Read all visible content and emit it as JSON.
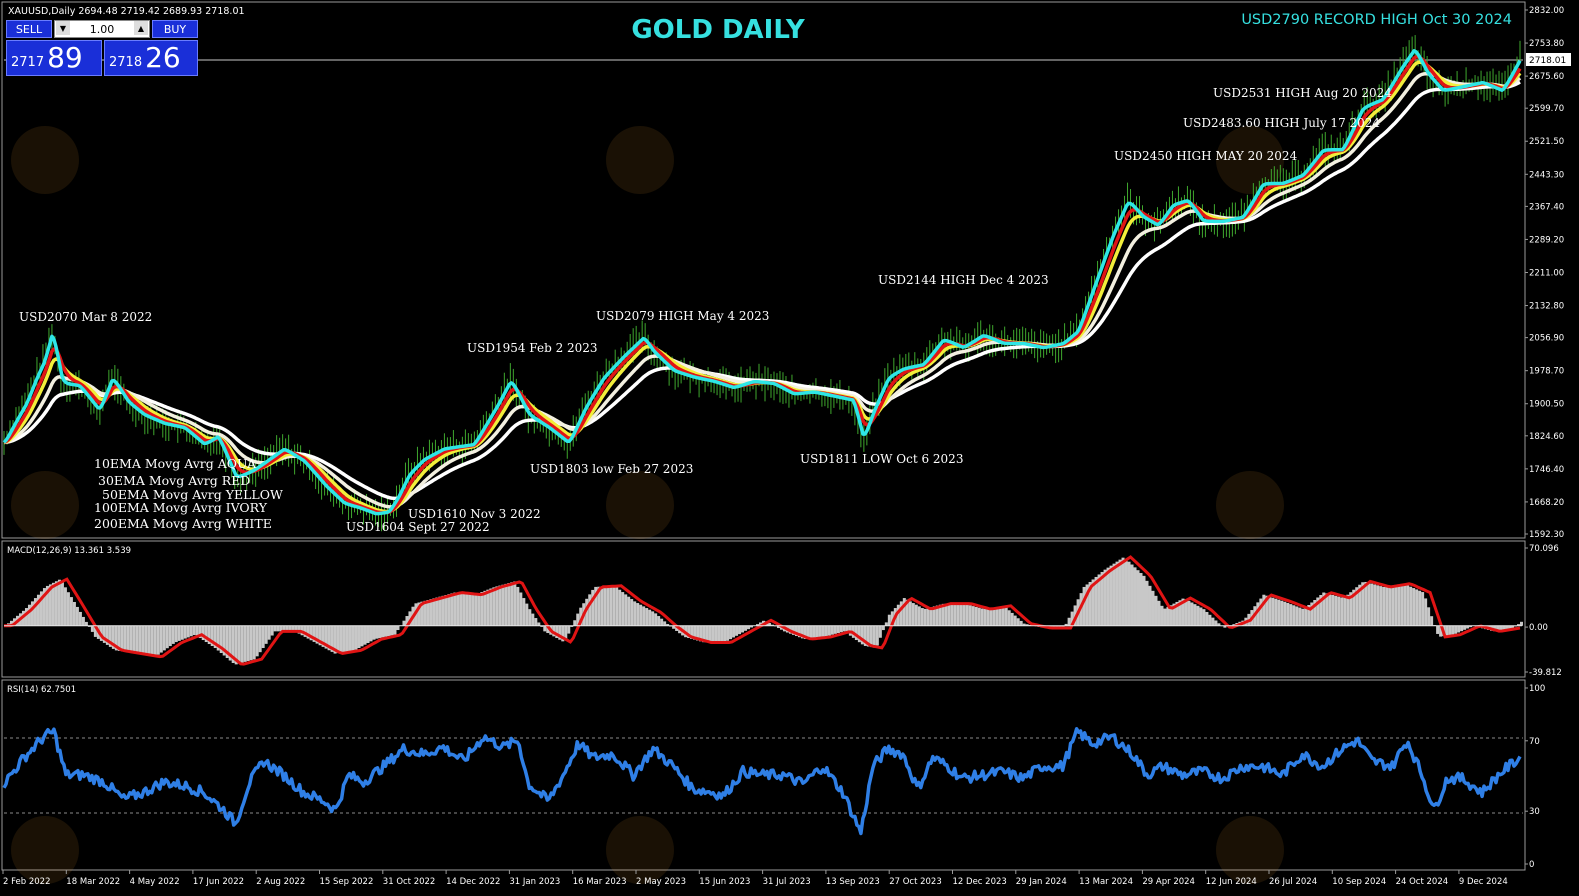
{
  "symbol_info": "XAUUSD,Daily  2694.48 2719.42 2689.93 2718.01",
  "title": "GOLD DAILY",
  "record_text": "USD2790 RECORD HIGH Oct 30 2024",
  "trade_panel": {
    "sell_label": "SELL",
    "buy_label": "BUY",
    "lot": "1.00",
    "sell_prefix": "2717",
    "sell_big": "89",
    "buy_prefix": "2718",
    "buy_big": "26",
    "down_arrow": "▼",
    "up_arrow": "▲"
  },
  "colors": {
    "ema10": "#2ee6e6",
    "ema30": "#e01414",
    "ema50": "#f2ee3a",
    "ema100": "#f3f0e0",
    "ema200": "#ffffff",
    "candles": "#3fa82e",
    "macd_line": "#e01414",
    "macd_hist": "#c8c8c8",
    "rsi": "#2f7fe6",
    "title": "#36e0e0"
  },
  "chart_data": [
    {
      "type": "line",
      "panel": "price",
      "price_label": "2718.01",
      "y_axis_ticks": [
        "2832.00",
        "2753.80",
        "2675.60",
        "2599.70",
        "2521.50",
        "2443.30",
        "2367.40",
        "2289.20",
        "2211.00",
        "2132.80",
        "2056.90",
        "1978.70",
        "1900.50",
        "1824.60",
        "1746.40",
        "1668.20",
        "1592.30"
      ],
      "ylim": [
        1592.3,
        2832.0
      ],
      "x_axis_labels": [
        "2 Feb 2022",
        "18 Mar 2022",
        "4 May 2022",
        "17 Jun 2022",
        "2 Aug 2022",
        "15 Sep 2022",
        "31 Oct 2022",
        "14 Dec 2022",
        "31 Jan 2023",
        "16 Mar 2023",
        "2 May 2023",
        "15 Jun 2023",
        "31 Jul 2023",
        "13 Sep 2023",
        "27 Oct 2023",
        "12 Dec 2023",
        "29 Jan 2024",
        "13 Mar 2024",
        "29 Apr 2024",
        "12 Jun 2024",
        "26 Jul 2024",
        "10 Sep 2024",
        "24 Oct 2024",
        "9 Dec 2024"
      ],
      "price_points": [
        [
          0,
          1805
        ],
        [
          10,
          1850
        ],
        [
          22,
          1900
        ],
        [
          32,
          1960
        ],
        [
          40,
          2000
        ],
        [
          48,
          2070
        ],
        [
          58,
          1945
        ],
        [
          75,
          1940
        ],
        [
          95,
          1880
        ],
        [
          108,
          1960
        ],
        [
          124,
          1900
        ],
        [
          140,
          1870
        ],
        [
          160,
          1850
        ],
        [
          180,
          1840
        ],
        [
          200,
          1800
        ],
        [
          214,
          1820
        ],
        [
          232,
          1720
        ],
        [
          250,
          1740
        ],
        [
          262,
          1760
        ],
        [
          280,
          1790
        ],
        [
          300,
          1760
        ],
        [
          322,
          1700
        ],
        [
          340,
          1660
        ],
        [
          355,
          1650
        ],
        [
          372,
          1635
        ],
        [
          385,
          1640
        ],
        [
          395,
          1680
        ],
        [
          405,
          1730
        ],
        [
          420,
          1765
        ],
        [
          440,
          1790
        ],
        [
          470,
          1800
        ],
        [
          495,
          1900
        ],
        [
          507,
          1954
        ],
        [
          525,
          1870
        ],
        [
          545,
          1840
        ],
        [
          565,
          1803
        ],
        [
          582,
          1890
        ],
        [
          600,
          1960
        ],
        [
          620,
          2010
        ],
        [
          640,
          2055
        ],
        [
          650,
          2020
        ],
        [
          670,
          1975
        ],
        [
          690,
          1960
        ],
        [
          710,
          1950
        ],
        [
          730,
          1935
        ],
        [
          750,
          1950
        ],
        [
          770,
          1945
        ],
        [
          790,
          1920
        ],
        [
          810,
          1925
        ],
        [
          830,
          1915
        ],
        [
          850,
          1905
        ],
        [
          860,
          1811
        ],
        [
          870,
          1880
        ],
        [
          885,
          1960
        ],
        [
          900,
          1980
        ],
        [
          920,
          1990
        ],
        [
          940,
          2050
        ],
        [
          960,
          2030
        ],
        [
          980,
          2060
        ],
        [
          1000,
          2040
        ],
        [
          1020,
          2040
        ],
        [
          1040,
          2030
        ],
        [
          1060,
          2040
        ],
        [
          1075,
          2070
        ],
        [
          1090,
          2170
        ],
        [
          1110,
          2300
        ],
        [
          1125,
          2380
        ],
        [
          1140,
          2340
        ],
        [
          1155,
          2320
        ],
        [
          1170,
          2370
        ],
        [
          1185,
          2380
        ],
        [
          1200,
          2330
        ],
        [
          1220,
          2330
        ],
        [
          1240,
          2340
        ],
        [
          1260,
          2420
        ],
        [
          1280,
          2420
        ],
        [
          1300,
          2440
        ],
        [
          1320,
          2500
        ],
        [
          1340,
          2500
        ],
        [
          1360,
          2600
        ],
        [
          1380,
          2620
        ],
        [
          1400,
          2700
        ],
        [
          1412,
          2740
        ],
        [
          1425,
          2680
        ],
        [
          1440,
          2640
        ],
        [
          1460,
          2650
        ],
        [
          1480,
          2660
        ],
        [
          1500,
          2640
        ],
        [
          1518,
          2718
        ]
      ],
      "series": [
        {
          "name": "10EMA Movg Avrg AQUA",
          "offset_lag": 6
        },
        {
          "name": "30EMA Movg Avrg RED",
          "offset_lag": 16
        },
        {
          "name": "50EMA Movg Avrg YELLOW",
          "offset_lag": 26
        },
        {
          "name": "100EMA Movg Avrg IVORY",
          "offset_lag": 50
        },
        {
          "name": "200EMA Movg Avrg WHITE",
          "offset_lag": 90
        }
      ],
      "legend_entries": [
        "10EMA Movg Avrg AQUA",
        "30EMA Movg Avrg RED",
        "50EMA Movg Avrg YELLOW",
        "100EMA Movg Avrg IVORY",
        "200EMA Movg Avrg WHITE"
      ],
      "annotations": [
        "USD2070 Mar 8 2022",
        "USD1954 Feb 2 2023",
        "USD2079 HIGH May 4 2023",
        "USD2144 HIGH Dec 4 2023",
        "USD2450 HIGH MAY 20 2024",
        "USD2483.60 HIGH July 17 2024",
        "USD2531 HIGH Aug 20 2024",
        "USD1803 low Feb 27 2023",
        "USD1811 LOW Oct 6 2023",
        "USD1610 Nov 3 2022",
        "USD1604 Sept 27 2022"
      ]
    },
    {
      "type": "area",
      "panel": "macd",
      "label": "MACD(12,26,9) 13.361 3.539",
      "y_axis_ticks": [
        "70.096",
        "0.00",
        "-39.812"
      ],
      "ylim": [
        -39.812,
        70.096
      ],
      "values": [
        [
          0,
          0
        ],
        [
          20,
          15
        ],
        [
          40,
          35
        ],
        [
          55,
          42
        ],
        [
          70,
          20
        ],
        [
          90,
          -10
        ],
        [
          110,
          -22
        ],
        [
          130,
          -25
        ],
        [
          150,
          -28
        ],
        [
          170,
          -15
        ],
        [
          190,
          -8
        ],
        [
          210,
          -20
        ],
        [
          230,
          -35
        ],
        [
          250,
          -30
        ],
        [
          270,
          -5
        ],
        [
          290,
          -5
        ],
        [
          310,
          -15
        ],
        [
          330,
          -25
        ],
        [
          350,
          -22
        ],
        [
          370,
          -12
        ],
        [
          390,
          -8
        ],
        [
          410,
          20
        ],
        [
          430,
          25
        ],
        [
          450,
          30
        ],
        [
          470,
          28
        ],
        [
          490,
          35
        ],
        [
          510,
          40
        ],
        [
          525,
          15
        ],
        [
          540,
          -5
        ],
        [
          560,
          -15
        ],
        [
          575,
          15
        ],
        [
          590,
          35
        ],
        [
          610,
          36
        ],
        [
          630,
          22
        ],
        [
          650,
          12
        ],
        [
          665,
          0
        ],
        [
          680,
          -10
        ],
        [
          700,
          -15
        ],
        [
          720,
          -15
        ],
        [
          740,
          -5
        ],
        [
          760,
          5
        ],
        [
          780,
          -5
        ],
        [
          800,
          -12
        ],
        [
          820,
          -10
        ],
        [
          840,
          -5
        ],
        [
          860,
          -18
        ],
        [
          872,
          -20
        ],
        [
          885,
          10
        ],
        [
          900,
          25
        ],
        [
          920,
          15
        ],
        [
          940,
          20
        ],
        [
          960,
          20
        ],
        [
          980,
          15
        ],
        [
          1000,
          18
        ],
        [
          1020,
          2
        ],
        [
          1040,
          -2
        ],
        [
          1060,
          -2
        ],
        [
          1080,
          35
        ],
        [
          1100,
          50
        ],
        [
          1120,
          62
        ],
        [
          1140,
          45
        ],
        [
          1160,
          15
        ],
        [
          1180,
          25
        ],
        [
          1200,
          15
        ],
        [
          1220,
          -2
        ],
        [
          1240,
          5
        ],
        [
          1260,
          28
        ],
        [
          1280,
          22
        ],
        [
          1300,
          15
        ],
        [
          1320,
          30
        ],
        [
          1340,
          25
        ],
        [
          1360,
          40
        ],
        [
          1380,
          35
        ],
        [
          1400,
          38
        ],
        [
          1420,
          30
        ],
        [
          1435,
          -10
        ],
        [
          1450,
          -8
        ],
        [
          1470,
          0
        ],
        [
          1490,
          -5
        ],
        [
          1510,
          -2
        ],
        [
          1520,
          5
        ]
      ]
    },
    {
      "type": "line",
      "panel": "rsi",
      "label": "RSI(14) 62.7501",
      "y_axis_ticks": [
        "100",
        "70",
        "30",
        "0"
      ],
      "ylim": [
        0,
        100
      ],
      "levels": [
        70,
        30
      ],
      "values": [
        [
          0,
          45
        ],
        [
          20,
          60
        ],
        [
          40,
          72
        ],
        [
          50,
          75
        ],
        [
          62,
          50
        ],
        [
          80,
          50
        ],
        [
          100,
          46
        ],
        [
          120,
          36
        ],
        [
          140,
          40
        ],
        [
          160,
          46
        ],
        [
          180,
          44
        ],
        [
          200,
          40
        ],
        [
          220,
          30
        ],
        [
          232,
          22
        ],
        [
          245,
          45
        ],
        [
          260,
          58
        ],
        [
          280,
          50
        ],
        [
          300,
          40
        ],
        [
          320,
          35
        ],
        [
          332,
          30
        ],
        [
          345,
          50
        ],
        [
          360,
          46
        ],
        [
          380,
          55
        ],
        [
          400,
          65
        ],
        [
          420,
          62
        ],
        [
          440,
          66
        ],
        [
          460,
          58
        ],
        [
          480,
          72
        ],
        [
          500,
          66
        ],
        [
          515,
          70
        ],
        [
          525,
          45
        ],
        [
          545,
          35
        ],
        [
          560,
          50
        ],
        [
          575,
          68
        ],
        [
          590,
          60
        ],
        [
          610,
          62
        ],
        [
          630,
          50
        ],
        [
          650,
          65
        ],
        [
          670,
          55
        ],
        [
          690,
          42
        ],
        [
          710,
          40
        ],
        [
          720,
          38
        ],
        [
          740,
          52
        ],
        [
          760,
          50
        ],
        [
          780,
          50
        ],
        [
          800,
          45
        ],
        [
          820,
          55
        ],
        [
          840,
          40
        ],
        [
          858,
          17
        ],
        [
          870,
          55
        ],
        [
          885,
          65
        ],
        [
          900,
          62
        ],
        [
          915,
          42
        ],
        [
          930,
          60
        ],
        [
          945,
          55
        ],
        [
          960,
          48
        ],
        [
          980,
          50
        ],
        [
          1000,
          52
        ],
        [
          1020,
          48
        ],
        [
          1040,
          55
        ],
        [
          1060,
          55
        ],
        [
          1075,
          75
        ],
        [
          1090,
          68
        ],
        [
          1110,
          72
        ],
        [
          1130,
          62
        ],
        [
          1145,
          50
        ],
        [
          1160,
          55
        ],
        [
          1180,
          50
        ],
        [
          1200,
          52
        ],
        [
          1220,
          48
        ],
        [
          1240,
          55
        ],
        [
          1260,
          55
        ],
        [
          1280,
          50
        ],
        [
          1300,
          62
        ],
        [
          1320,
          55
        ],
        [
          1340,
          65
        ],
        [
          1355,
          70
        ],
        [
          1370,
          58
        ],
        [
          1390,
          55
        ],
        [
          1405,
          70
        ],
        [
          1420,
          50
        ],
        [
          1432,
          30
        ],
        [
          1445,
          48
        ],
        [
          1460,
          48
        ],
        [
          1480,
          40
        ],
        [
          1500,
          52
        ],
        [
          1518,
          60
        ]
      ]
    }
  ]
}
